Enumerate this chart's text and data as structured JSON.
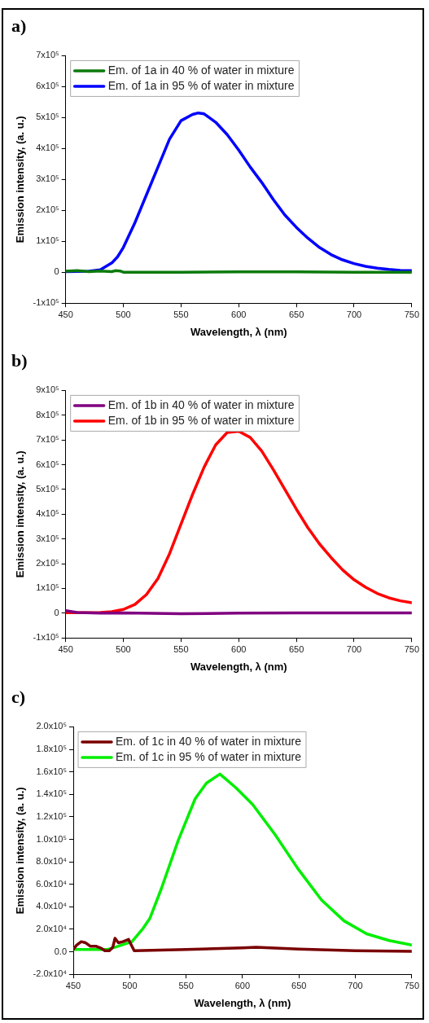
{
  "chart_data": [
    {
      "type": "line",
      "title": "a)",
      "xlabel": "Wavelength, λ (nm)",
      "ylabel": "Emission intensity, (a. u.)",
      "xlim": [
        450,
        750
      ],
      "xticks": [
        450,
        500,
        550,
        600,
        650,
        700,
        750
      ],
      "ylim": [
        -100000,
        700000
      ],
      "yticks": [
        {
          "value": -100000,
          "label": "-1x10⁵"
        },
        {
          "value": 0,
          "label": "0"
        },
        {
          "value": 100000,
          "label": "1x10⁵"
        },
        {
          "value": 200000,
          "label": "2x10⁵"
        },
        {
          "value": 300000,
          "label": "3x10⁵"
        },
        {
          "value": 400000,
          "label": "4x10⁵"
        },
        {
          "value": 500000,
          "label": "5x10⁵"
        },
        {
          "value": 600000,
          "label": "6x10⁵"
        },
        {
          "value": 700000,
          "label": "7x10⁵"
        }
      ],
      "legend": "top left",
      "grid": false,
      "marker": "none",
      "series": [
        {
          "name": "Em. of 1a in 40 % of water in mixture",
          "color": "#0b7a0b",
          "x": [
            450,
            460,
            470,
            480,
            490,
            493,
            497,
            500,
            550,
            600,
            650,
            700,
            750
          ],
          "values": [
            3000,
            5000,
            2000,
            4000,
            2000,
            5000,
            4000,
            0,
            0,
            1000,
            1000,
            0,
            0
          ]
        },
        {
          "name": "Em. of 1a in 95 % of water in mixture",
          "color": "#0000ff",
          "x": [
            450,
            470,
            480,
            490,
            495,
            500,
            510,
            520,
            530,
            540,
            550,
            560,
            565,
            570,
            580,
            590,
            600,
            610,
            620,
            630,
            640,
            650,
            660,
            670,
            680,
            690,
            700,
            710,
            720,
            730,
            740,
            750
          ],
          "values": [
            2000,
            3000,
            8000,
            30000,
            50000,
            80000,
            160000,
            250000,
            340000,
            430000,
            490000,
            510000,
            515000,
            512000,
            485000,
            445000,
            395000,
            340000,
            290000,
            235000,
            185000,
            145000,
            110000,
            80000,
            57000,
            40000,
            28000,
            19000,
            13000,
            9000,
            6000,
            5000
          ]
        }
      ]
    },
    {
      "type": "line",
      "title": "b)",
      "xlabel": "Wavelength, λ (nm)",
      "ylabel": "Emission intensity, (a. u.)",
      "xlim": [
        450,
        750
      ],
      "xticks": [
        450,
        500,
        550,
        600,
        650,
        700,
        750
      ],
      "ylim": [
        -100000,
        900000
      ],
      "yticks": [
        {
          "value": -100000,
          "label": "-1x10⁵"
        },
        {
          "value": 0,
          "label": "0"
        },
        {
          "value": 100000,
          "label": "1x10⁵"
        },
        {
          "value": 200000,
          "label": "2x10⁵"
        },
        {
          "value": 300000,
          "label": "3x10⁵"
        },
        {
          "value": 400000,
          "label": "4x10⁵"
        },
        {
          "value": 500000,
          "label": "5x10⁵"
        },
        {
          "value": 600000,
          "label": "6x10⁵"
        },
        {
          "value": 700000,
          "label": "7x10⁵"
        },
        {
          "value": 800000,
          "label": "8x10⁵"
        },
        {
          "value": 900000,
          "label": "9x10⁵"
        }
      ],
      "legend": "top left",
      "grid": false,
      "marker": "none",
      "series": [
        {
          "name": "Em. of 1b in 40 % of water in mixture",
          "color": "#800080",
          "x": [
            450,
            460,
            480,
            500,
            550,
            600,
            650,
            700,
            750
          ],
          "values": [
            10000,
            3000,
            0,
            1000,
            -2000,
            0,
            1000,
            1000,
            1000
          ]
        },
        {
          "name": "Em. of 1b in 95 % of water in mixture",
          "color": "#ff0000",
          "x": [
            450,
            480,
            490,
            500,
            510,
            520,
            530,
            540,
            550,
            560,
            570,
            580,
            590,
            600,
            610,
            620,
            630,
            640,
            650,
            660,
            670,
            680,
            690,
            700,
            710,
            720,
            730,
            740,
            750
          ],
          "values": [
            2000,
            3000,
            6000,
            15000,
            35000,
            75000,
            140000,
            240000,
            360000,
            480000,
            590000,
            680000,
            730000,
            735000,
            710000,
            655000,
            580000,
            500000,
            420000,
            345000,
            280000,
            225000,
            175000,
            135000,
            105000,
            80000,
            62000,
            50000,
            42000
          ]
        }
      ]
    },
    {
      "type": "line",
      "title": "c)",
      "xlabel": "Wavelength, λ (nm)",
      "ylabel": "Emission intensity, (a. u.)",
      "xlim": [
        450,
        750
      ],
      "xticks": [
        450,
        500,
        550,
        600,
        650,
        700,
        750
      ],
      "ylim": [
        -20000,
        200000
      ],
      "yticks": [
        {
          "value": -20000,
          "label": "-2.0x10⁴"
        },
        {
          "value": 0,
          "label": "0.0"
        },
        {
          "value": 20000,
          "label": "2.0x10⁴"
        },
        {
          "value": 40000,
          "label": "4.0x10⁴"
        },
        {
          "value": 60000,
          "label": "6.0x10⁴"
        },
        {
          "value": 80000,
          "label": "8.0x10⁴"
        },
        {
          "value": 100000,
          "label": "1.0x10⁵"
        },
        {
          "value": 120000,
          "label": "1.2x10⁵"
        },
        {
          "value": 140000,
          "label": "1.4x10⁵"
        },
        {
          "value": 160000,
          "label": "1.6x10⁵"
        },
        {
          "value": 180000,
          "label": "1.8x10⁵"
        },
        {
          "value": 200000,
          "label": "2.0x10⁵"
        }
      ],
      "legend": "top left",
      "grid": false,
      "marker": "none",
      "series": [
        {
          "name": "Em. of 1c in 40 % of water in mixture",
          "color": "#7a0000",
          "x": [
            450,
            453,
            457,
            461,
            465,
            470,
            475,
            478,
            482,
            485,
            487,
            490,
            494,
            499,
            501,
            504,
            550,
            600,
            612,
            650,
            700,
            750
          ],
          "values": [
            2000,
            6000,
            9000,
            8000,
            5000,
            5000,
            3000,
            1000,
            1000,
            4000,
            12000,
            8000,
            9000,
            11000,
            7000,
            1000,
            2000,
            3500,
            4000,
            2500,
            1000,
            500
          ]
        },
        {
          "name": "Em. of 1c in 95 % of water in mixture",
          "color": "#00ee00",
          "x": [
            450,
            470,
            480,
            490,
            502,
            512,
            518,
            528,
            543,
            558,
            568,
            580,
            594,
            609,
            629,
            649,
            670,
            690,
            710,
            730,
            750
          ],
          "values": [
            2000,
            2000,
            2000,
            5000,
            9000,
            21000,
            30000,
            56000,
            99000,
            136000,
            150000,
            158000,
            146000,
            131000,
            104000,
            74000,
            46000,
            27500,
            16000,
            10000,
            6000
          ]
        }
      ]
    }
  ]
}
